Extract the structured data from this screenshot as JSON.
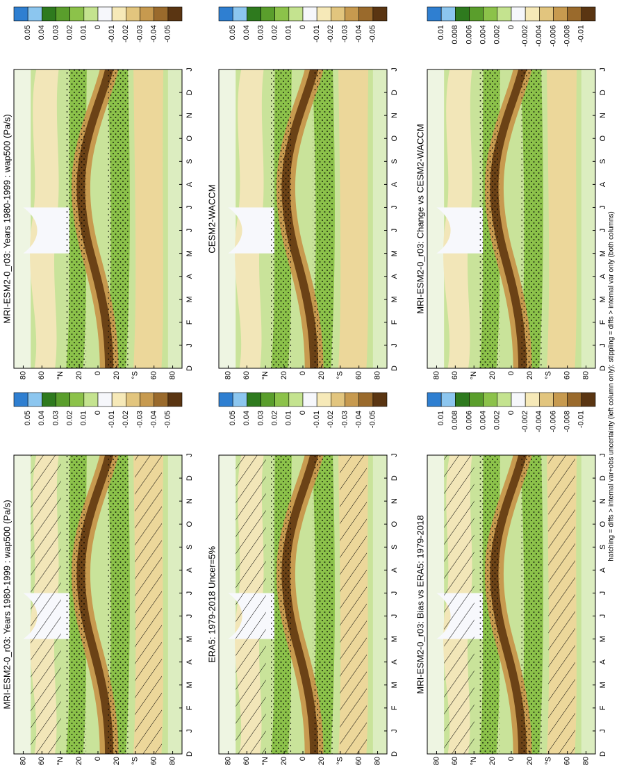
{
  "panels": [
    {
      "title": "MRI-ESM2-0_r03: Years 1980-1999 : wap500 (Pa/s)",
      "colorbar_labels": [
        "0.05",
        "0.04",
        "0.03",
        "0.02",
        "0.01",
        "0",
        "-0.01",
        "-0.02",
        "-0.03",
        "-0.04",
        "-0.05"
      ]
    },
    {
      "title": "MRI-ESM2-0_r03: Years 1980-1999 : wap500 (Pa/s)",
      "colorbar_labels": [
        "0.05",
        "0.04",
        "0.03",
        "0.02",
        "0.01",
        "0",
        "-0.01",
        "-0.02",
        "-0.03",
        "-0.04",
        "-0.05"
      ]
    },
    {
      "title": "ERA5: 1979-2018 Uncer=5%",
      "colorbar_labels": [
        "0.05",
        "0.04",
        "0.03",
        "0.02",
        "0.01",
        "0",
        "-0.01",
        "-0.02",
        "-0.03",
        "-0.04",
        "-0.05"
      ]
    },
    {
      "title": "CESM2-WACCM",
      "colorbar_labels": [
        "0.05",
        "0.04",
        "0.03",
        "0.02",
        "0.01",
        "0",
        "-0.01",
        "-0.02",
        "-0.03",
        "-0.04",
        "-0.05"
      ]
    },
    {
      "title": "MRI-ESM2-0_r03: Bias vs ERA5: 1979-2018",
      "colorbar_labels": [
        "0.01",
        "0.008",
        "0.006",
        "0.004",
        "0.002",
        "0",
        "-0.002",
        "-0.004",
        "-0.006",
        "-0.008",
        "-0.01"
      ]
    },
    {
      "title": "MRI-ESM2-0_r03: Change vs CESM2-WACCM",
      "colorbar_labels": [
        "0.01",
        "0.008",
        "0.006",
        "0.004",
        "0.002",
        "0",
        "-0.002",
        "-0.004",
        "-0.006",
        "-0.008",
        "-0.01"
      ]
    }
  ],
  "month_labels": [
    "D",
    "J",
    "F",
    "M",
    "A",
    "M",
    "J",
    "J",
    "A",
    "S",
    "O",
    "N",
    "D",
    "J"
  ],
  "lat_labels": [
    "80",
    "60",
    "°N",
    "20",
    "0",
    "20",
    "°S",
    "60",
    "80"
  ],
  "footnote": "hatching = diffs > internal var+obs uncertainty (left column only); stippling = diffs > internal var only (both columns)"
}
